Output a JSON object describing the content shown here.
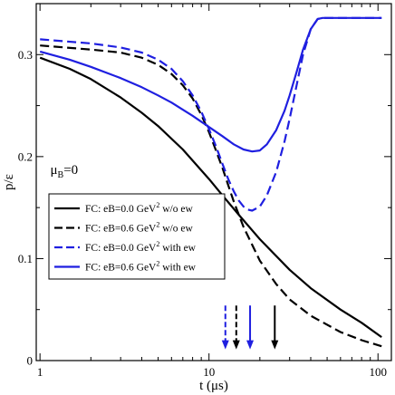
{
  "chart_data": {
    "type": "line",
    "xlabel_main": "t",
    "xlabel_unit": "(μs)",
    "ylabel": "p/ε",
    "xscale": "log",
    "xlim": [
      0.95,
      120
    ],
    "ylim": [
      0,
      0.35
    ],
    "xticks": [
      {
        "value": 1,
        "label": "1"
      },
      {
        "value": 10,
        "label": "10"
      },
      {
        "value": 100,
        "label": "100"
      }
    ],
    "yticks": [
      {
        "value": 0,
        "label": "0"
      },
      {
        "value": 0.1,
        "label": "0.1"
      },
      {
        "value": 0.2,
        "label": "0.2"
      },
      {
        "value": 0.3,
        "label": "0.3"
      }
    ],
    "annotation": {
      "base": "μ",
      "sub": "B",
      "rest": "=0"
    },
    "legend_position": "center-left",
    "series": [
      {
        "name_parts": {
          "pre": "FC: eB=0.0 GeV",
          "sup": "2",
          "post": " w/o ew"
        },
        "color": "#000000",
        "dash": "solid",
        "x": [
          1,
          1.5,
          2,
          3,
          4,
          5,
          7,
          10,
          12,
          15,
          20,
          30,
          40,
          60,
          80,
          105
        ],
        "y": [
          0.297,
          0.286,
          0.276,
          0.258,
          0.243,
          0.23,
          0.207,
          0.178,
          0.162,
          0.143,
          0.119,
          0.089,
          0.071,
          0.05,
          0.037,
          0.023
        ]
      },
      {
        "name_parts": {
          "pre": "FC: eB=0.6 GeV",
          "sup": "2",
          "post": " w/o ew"
        },
        "color": "#000000",
        "dash": "dashed",
        "x": [
          1,
          2,
          3,
          4,
          5,
          6,
          7,
          8,
          9,
          10,
          11,
          12,
          13,
          14,
          16,
          20,
          25,
          30,
          40,
          60,
          80,
          105
        ],
        "y": [
          0.309,
          0.305,
          0.302,
          0.297,
          0.29,
          0.281,
          0.27,
          0.257,
          0.241,
          0.224,
          0.206,
          0.189,
          0.172,
          0.156,
          0.131,
          0.098,
          0.075,
          0.06,
          0.044,
          0.028,
          0.02,
          0.014
        ]
      },
      {
        "name_parts": {
          "pre": "FC: eB=0.0 GeV",
          "sup": "2",
          "post": " with ew"
        },
        "color": "#1f1fe0",
        "dash": "dashed",
        "x": [
          1,
          2,
          3,
          4,
          5,
          6,
          7,
          8,
          9,
          10,
          11,
          12,
          13,
          14,
          15,
          16,
          17,
          18,
          20,
          22,
          25,
          28,
          30,
          33,
          36,
          40,
          44,
          47,
          50,
          60,
          80,
          105
        ],
        "y": [
          0.315,
          0.311,
          0.307,
          0.302,
          0.295,
          0.286,
          0.274,
          0.26,
          0.244,
          0.227,
          0.21,
          0.193,
          0.178,
          0.166,
          0.157,
          0.151,
          0.148,
          0.147,
          0.151,
          0.162,
          0.185,
          0.215,
          0.237,
          0.27,
          0.3,
          0.325,
          0.335,
          0.336,
          0.336,
          0.336,
          0.336,
          0.336
        ]
      },
      {
        "name_parts": {
          "pre": "FC: eB=0.6 GeV",
          "sup": "2",
          "post": " with ew"
        },
        "color": "#1f1fe0",
        "dash": "solid",
        "x": [
          1,
          1.5,
          2,
          3,
          4,
          5,
          6,
          7,
          8,
          10,
          12,
          14,
          16,
          18,
          20,
          22,
          25,
          28,
          30,
          33,
          36,
          40,
          44,
          47,
          50,
          60,
          80,
          105
        ],
        "y": [
          0.303,
          0.295,
          0.288,
          0.277,
          0.268,
          0.26,
          0.253,
          0.246,
          0.24,
          0.229,
          0.22,
          0.212,
          0.207,
          0.205,
          0.206,
          0.212,
          0.226,
          0.245,
          0.26,
          0.283,
          0.305,
          0.325,
          0.335,
          0.336,
          0.336,
          0.336,
          0.336,
          0.336
        ]
      }
    ],
    "arrows": [
      {
        "x": 12.5,
        "color": "#1f1fe0",
        "dash": "dashed"
      },
      {
        "x": 14.5,
        "color": "#000000",
        "dash": "dashed"
      },
      {
        "x": 17.5,
        "color": "#1f1fe0",
        "dash": "solid"
      },
      {
        "x": 24.5,
        "color": "#000000",
        "dash": "solid"
      }
    ]
  }
}
